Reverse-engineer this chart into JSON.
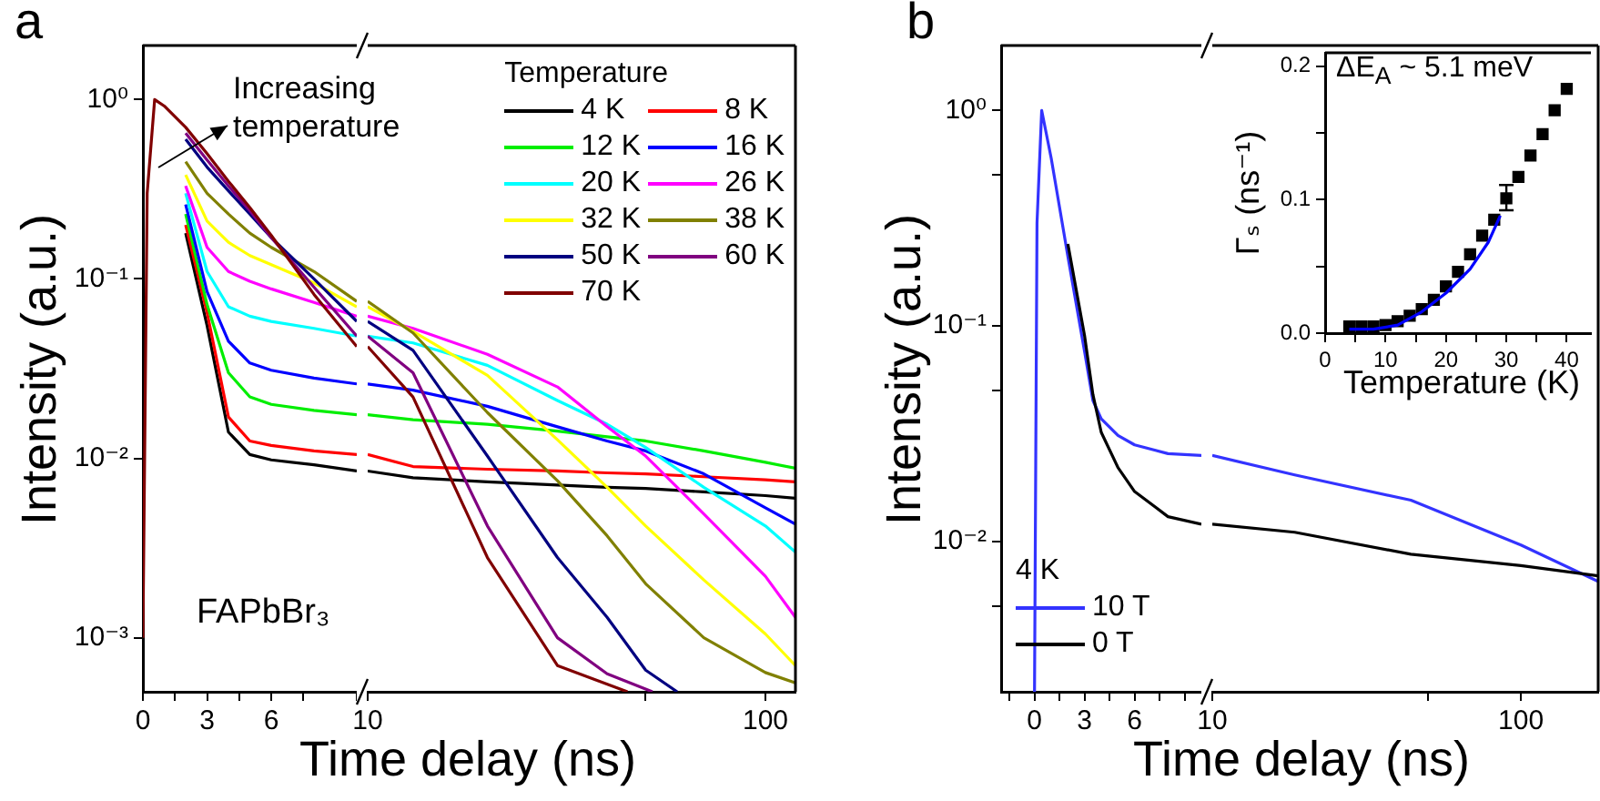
{
  "chart_data": [
    {
      "type": "line",
      "title": "a",
      "ylabel": "Intensity (a.u.)",
      "xlabel": "Time delay (ns)",
      "annotations": [
        "Increasing temperature",
        "FAPbBr₃"
      ],
      "log": "y",
      "xlim": [
        0,
        10
      ],
      "xticks": [
        0,
        {
          "value": 1.5,
          "label": null
        },
        3,
        {
          "value": 4.5,
          "label": null
        },
        6,
        {
          "value": 7.5,
          "label": null
        },
        {
          "value": 10,
          "label": null
        }
      ],
      "ylim": [
        0.0005,
        2
      ],
      "yticks": [
        {
          "value": 1,
          "label": "10⁰"
        },
        {
          "value": 0.1,
          "label": "10⁻¹"
        },
        {
          "value": 0.01,
          "label": "10⁻²"
        },
        {
          "value": 0.001,
          "label": "10⁻³"
        }
      ],
      "grid": false,
      "legend": false,
      "x": [
        0,
        0.2,
        0.55,
        1,
        2,
        3,
        4,
        5,
        6,
        8,
        10
      ],
      "series": [
        {
          "color": "#000000",
          "values": [
            null,
            null,
            null,
            null,
            0.18,
            0.055,
            0.014,
            0.0105,
            0.0098,
            0.0092,
            0.0085
          ]
        },
        {
          "color": "#ff0000",
          "values": [
            null,
            null,
            null,
            null,
            0.2,
            0.065,
            0.017,
            0.0125,
            0.0118,
            0.011,
            0.0105
          ]
        },
        {
          "color": "#00ee00",
          "values": [
            null,
            null,
            null,
            null,
            0.23,
            0.072,
            0.03,
            0.022,
            0.02,
            0.0185,
            0.0175
          ]
        },
        {
          "color": "#0000ff",
          "values": [
            null,
            null,
            null,
            null,
            0.26,
            0.085,
            0.045,
            0.034,
            0.031,
            0.028,
            0.026
          ]
        },
        {
          "color": "#00ffff",
          "values": [
            null,
            null,
            null,
            null,
            0.3,
            0.11,
            0.07,
            0.062,
            0.058,
            0.053,
            0.048
          ]
        },
        {
          "color": "#ff00ff",
          "values": [
            null,
            null,
            null,
            null,
            0.33,
            0.15,
            0.11,
            0.097,
            0.088,
            0.074,
            0.062
          ]
        },
        {
          "color": "#ffff00",
          "values": [
            null,
            null,
            null,
            null,
            0.38,
            0.21,
            0.16,
            0.135,
            0.12,
            0.095,
            0.07
          ]
        },
        {
          "color": "#808000",
          "values": [
            null,
            null,
            null,
            null,
            0.45,
            0.3,
            0.23,
            0.18,
            0.15,
            0.11,
            0.075
          ]
        },
        {
          "color": "#000080",
          "values": [
            null,
            null,
            null,
            null,
            0.6,
            0.42,
            0.31,
            0.23,
            0.17,
            0.1,
            0.058
          ]
        },
        {
          "color": "#800080",
          "values": [
            null,
            null,
            null,
            null,
            0.65,
            0.46,
            0.33,
            0.24,
            0.17,
            0.09,
            0.048
          ]
        },
        {
          "color": "#800000",
          "values": [
            0.001,
            0.3,
            1,
            0.92,
            0.7,
            0.5,
            0.35,
            0.25,
            0.175,
            0.082,
            0.042
          ]
        }
      ]
    },
    {
      "type": "line",
      "log": "xy",
      "xlim": [
        10,
        119
      ],
      "xticks": [
        10,
        {
          "value": 50,
          "label": null
        },
        100
      ],
      "ylim": [
        0.0005,
        2
      ],
      "tick_labels": "x",
      "grid": false,
      "legend": "top right",
      "legend_title": "Temperature",
      "x": [
        10,
        13,
        20,
        30,
        40,
        50,
        70,
        100,
        119
      ],
      "series": [
        {
          "name": "4 K",
          "color": "#000000",
          "values": [
            0.0085,
            0.0078,
            0.0074,
            0.0071,
            0.0069,
            0.0068,
            0.0065,
            0.0062,
            0.006
          ]
        },
        {
          "name": "8 K",
          "color": "#ff0000",
          "values": [
            0.0105,
            0.009,
            0.0087,
            0.0085,
            0.0083,
            0.0082,
            0.0079,
            0.0076,
            0.0074
          ]
        },
        {
          "name": "12 K",
          "color": "#00ee00",
          "values": [
            0.0175,
            0.0164,
            0.0155,
            0.0142,
            0.0132,
            0.0125,
            0.011,
            0.0095,
            0.0088
          ]
        },
        {
          "name": "16 K",
          "color": "#0000ff",
          "values": [
            0.026,
            0.024,
            0.0195,
            0.015,
            0.0125,
            0.011,
            0.0082,
            0.0053,
            0.0043
          ]
        },
        {
          "name": "20 K",
          "color": "#00ffff",
          "values": [
            0.048,
            0.044,
            0.033,
            0.021,
            0.0155,
            0.0115,
            0.0069,
            0.0042,
            0.003
          ]
        },
        {
          "name": "26 K",
          "color": "#ff00ff",
          "values": [
            0.062,
            0.053,
            0.038,
            0.025,
            0.015,
            0.0103,
            0.0049,
            0.0022,
            0.0013
          ]
        },
        {
          "name": "32 K",
          "color": "#ffff00",
          "values": [
            0.07,
            0.051,
            0.029,
            0.0127,
            0.0069,
            0.0042,
            0.0021,
            0.00105,
            0.0007
          ]
        },
        {
          "name": "38 K",
          "color": "#808000",
          "values": [
            0.075,
            0.05,
            0.018,
            0.0075,
            0.0037,
            0.002,
            0.001,
            0.00064,
            0.00056
          ]
        },
        {
          "name": "50 K",
          "color": "#000080",
          "x": [
            10,
            13,
            20,
            30,
            40,
            50,
            60
          ],
          "values": [
            0.058,
            0.04,
            0.0103,
            0.0028,
            0.0013,
            0.00066,
            0.0005
          ]
        },
        {
          "name": "60 K",
          "color": "#800080",
          "x": [
            10,
            13,
            20,
            30,
            40,
            52
          ],
          "values": [
            0.048,
            0.03,
            0.0042,
            0.001,
            0.00063,
            0.0005
          ]
        },
        {
          "name": "70 K",
          "color": "#800000",
          "x": [
            10,
            13,
            20,
            30,
            45
          ],
          "values": [
            0.042,
            0.022,
            0.0028,
            0.0007,
            0.0005
          ]
        }
      ]
    },
    {
      "type": "line",
      "title": "b",
      "ylabel": "Intensity (a.u.)",
      "xlabel": "Time delay (ns)",
      "log": "y",
      "xlim": [
        -2,
        10
      ],
      "xticks": [
        {
          "value": -1.5,
          "label": null
        },
        0,
        {
          "value": 1.5,
          "label": null
        },
        3,
        {
          "value": 4.5,
          "label": null
        },
        6,
        {
          "value": 7.5,
          "label": null
        },
        {
          "value": 9,
          "label": null
        }
      ],
      "ylim": [
        0.002,
        2
      ],
      "yticks": [
        {
          "value": 1,
          "label": "10⁰"
        },
        {
          "value": 0.5,
          "label": null
        },
        {
          "value": 0.1,
          "label": "10⁻¹"
        },
        {
          "value": 0.05,
          "label": null
        },
        {
          "value": 0.01,
          "label": "10⁻²"
        },
        {
          "value": 0.005,
          "label": null
        }
      ],
      "grid": false,
      "legend": "bottom left",
      "legend_title": "4 K",
      "x": [
        0,
        0.15,
        0.43,
        1,
        2,
        3,
        3.5,
        4,
        5,
        6,
        8,
        10
      ],
      "series": [
        {
          "name": "10 T",
          "color": "#3333ff",
          "values": [
            0.002,
            0.3,
            1,
            0.6,
            0.21,
            0.076,
            0.045,
            0.037,
            0.031,
            0.028,
            0.0255,
            0.025
          ]
        },
        {
          "name": "0 T",
          "color": "#000000",
          "values": [
            null,
            null,
            null,
            null,
            0.24,
            0.09,
            0.048,
            0.032,
            0.022,
            0.017,
            0.013,
            0.012
          ]
        }
      ]
    },
    {
      "type": "line",
      "log": "xy",
      "xlim": [
        10,
        178
      ],
      "xticks": [
        10,
        {
          "value": 50,
          "label": null
        },
        100
      ],
      "ylim": [
        0.002,
        2
      ],
      "tick_labels": "x",
      "grid": false,
      "legend": false,
      "x": [
        10,
        18.5,
        44,
        100,
        178
      ],
      "series": [
        {
          "color": "#3333ff",
          "values": [
            0.025,
            0.0203,
            0.0155,
            0.0096,
            0.0065
          ]
        },
        {
          "color": "#000000",
          "values": [
            0.012,
            0.011,
            0.0087,
            0.0077,
            0.0069
          ]
        }
      ]
    },
    {
      "type": "scatter",
      "ylabel": "Γₛ (ns⁻¹)",
      "xlabel": "Temperature (K)",
      "annotations": [
        "ΔE$_{A}$ ~ 5.1 meV"
      ],
      "xlim": [
        0,
        44
      ],
      "xticks": [
        0,
        {
          "value": 5,
          "label": null
        },
        10,
        {
          "value": 15,
          "label": null
        },
        20,
        {
          "value": 25,
          "label": null
        },
        30,
        {
          "value": 35,
          "label": null
        },
        40
      ],
      "ylim": [
        0,
        0.21
      ],
      "yticks": [
        {
          "value": 0,
          "label": "0.0"
        },
        {
          "value": 0.05,
          "label": null
        },
        {
          "value": 0.1,
          "label": "0.1"
        },
        {
          "value": 0.15,
          "label": null
        },
        {
          "value": 0.2,
          "label": "0.2"
        }
      ],
      "grid": false,
      "legend": false,
      "series": [
        {
          "marker": "square",
          "color": "#000000",
          "x": [
            4,
            6,
            8,
            10,
            12,
            14,
            16,
            18,
            20,
            22,
            24,
            26,
            28,
            30,
            32,
            34,
            36,
            38,
            40
          ],
          "values": [
            0.005,
            0.005,
            0.005,
            0.006,
            0.009,
            0.013,
            0.018,
            0.025,
            0.035,
            0.046,
            0.059,
            0.073,
            0.085,
            0.101,
            0.117,
            0.133,
            0.149,
            0.167,
            0.183
          ],
          "errors": [
            null,
            null,
            null,
            null,
            null,
            null,
            null,
            null,
            null,
            null,
            null,
            null,
            null,
            [
              0.092,
              0.111
            ],
            null,
            null,
            null,
            null,
            null
          ]
        },
        {
          "type": "line",
          "color": "#0000ff",
          "x": [
            4,
            8,
            12,
            16,
            20,
            24,
            27,
            29
          ],
          "values": [
            0.003,
            0.003,
            0.006,
            0.016,
            0.03,
            0.048,
            0.068,
            0.088
          ]
        }
      ]
    }
  ]
}
